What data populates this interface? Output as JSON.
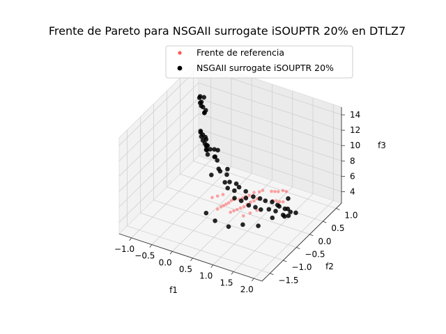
{
  "chart_data": {
    "type": "scatter",
    "projection": "3d",
    "title": "Frente de Pareto para NSGAII surrogate iSOUPTR 20% en DTLZ7",
    "xlabel": "f1",
    "ylabel": "f2",
    "zlabel": "f3",
    "xlim": [
      -1.3,
      2.2
    ],
    "ylim": [
      -1.8,
      1.2
    ],
    "zlim": [
      2.5,
      15.0
    ],
    "xticks": [
      "−1.0",
      "−0.5",
      "0.0",
      "0.5",
      "1.0",
      "1.5",
      "2.0"
    ],
    "yticks": [
      "−1.5",
      "−1.0",
      "−0.5",
      "0.0",
      "0.5",
      "1.0"
    ],
    "zticks": [
      "4",
      "6",
      "8",
      "10",
      "12",
      "14"
    ],
    "grid": true,
    "legend_position": "top-right",
    "series": [
      {
        "name": "Frente de referencia",
        "color": "#ff5a5a",
        "marker": "small-dot",
        "points": [
          [
            0.55,
            -0.45,
            4.0
          ],
          [
            0.6,
            -0.4,
            4.1
          ],
          [
            0.65,
            -0.35,
            4.2
          ],
          [
            0.7,
            -0.3,
            4.3
          ],
          [
            0.75,
            -0.25,
            4.4
          ],
          [
            0.8,
            -0.2,
            4.6
          ],
          [
            0.85,
            -0.15,
            4.8
          ],
          [
            0.9,
            -0.1,
            4.9
          ],
          [
            0.95,
            -0.05,
            5.1
          ],
          [
            0.3,
            -0.55,
            4.3
          ],
          [
            0.35,
            -0.5,
            4.5
          ],
          [
            0.4,
            -0.48,
            4.7
          ],
          [
            0.45,
            -0.46,
            4.9
          ],
          [
            0.5,
            -0.44,
            5.1
          ],
          [
            0.55,
            -0.42,
            5.4
          ],
          [
            0.6,
            -0.4,
            5.6
          ],
          [
            0.7,
            -0.35,
            5.6
          ],
          [
            0.75,
            -0.3,
            5.7
          ],
          [
            0.8,
            -0.25,
            5.8
          ],
          [
            0.85,
            -0.2,
            5.9
          ],
          [
            0.9,
            -0.1,
            6.0
          ],
          [
            1.0,
            -0.05,
            6.1
          ],
          [
            1.05,
            0.0,
            6.2
          ],
          [
            1.2,
            0.1,
            6.0
          ],
          [
            1.25,
            0.15,
            5.9
          ],
          [
            1.3,
            0.2,
            5.8
          ],
          [
            1.35,
            0.3,
            5.7
          ],
          [
            1.4,
            0.35,
            5.5
          ],
          [
            1.3,
            0.0,
            5.3
          ],
          [
            1.35,
            0.05,
            5.2
          ],
          [
            1.4,
            0.1,
            5.0
          ],
          [
            1.45,
            0.15,
            4.9
          ],
          [
            0.9,
            -0.5,
            4.3
          ],
          [
            1.0,
            -0.4,
            4.5
          ],
          [
            1.1,
            -0.3,
            4.7
          ],
          [
            0.2,
            -0.6,
            5.8
          ],
          [
            0.3,
            -0.55,
            6.0
          ],
          [
            0.4,
            -0.5,
            6.2
          ]
        ]
      },
      {
        "name": "NSGAII surrogate iSOUPTR 20%",
        "color": "#000000",
        "marker": "dot",
        "points": [
          [
            -1.15,
            1.0,
            11.0
          ],
          [
            -1.12,
            0.98,
            11.3
          ],
          [
            -1.1,
            0.95,
            10.6
          ],
          [
            -1.05,
            0.92,
            10.9
          ],
          [
            -1.08,
            0.96,
            10.2
          ],
          [
            -1.0,
            0.9,
            10.4
          ],
          [
            -0.98,
            0.93,
            9.6
          ],
          [
            -1.02,
            0.97,
            11.4
          ],
          [
            -0.95,
            0.88,
            9.8
          ],
          [
            -0.93,
            0.9,
            10.1
          ],
          [
            -0.7,
            0.35,
            9.5
          ],
          [
            -0.68,
            0.32,
            9.8
          ],
          [
            -0.65,
            0.3,
            9.2
          ],
          [
            -0.6,
            0.28,
            9.6
          ],
          [
            -0.58,
            0.25,
            9.0
          ],
          [
            -0.55,
            0.3,
            9.3
          ],
          [
            -0.5,
            0.2,
            8.9
          ],
          [
            -0.48,
            0.22,
            9.4
          ],
          [
            -0.45,
            0.18,
            8.7
          ],
          [
            -0.42,
            0.15,
            9.0
          ],
          [
            -0.4,
            0.1,
            8.6
          ],
          [
            -0.38,
            0.12,
            9.1
          ],
          [
            -0.35,
            0.05,
            8.8
          ],
          [
            -0.3,
            0.0,
            8.5
          ],
          [
            -0.25,
            0.02,
            9.2
          ],
          [
            -0.2,
            0.1,
            9.0
          ],
          [
            -0.15,
            0.05,
            8.3
          ],
          [
            -0.1,
            -0.05,
            8.7
          ],
          [
            -0.05,
            0.0,
            9.5
          ],
          [
            0.0,
            -0.1,
            8.6
          ],
          [
            0.1,
            -0.2,
            8.0
          ],
          [
            0.2,
            -0.3,
            8.2
          ],
          [
            0.3,
            -0.2,
            7.6
          ],
          [
            0.35,
            -0.35,
            7.2
          ],
          [
            0.4,
            -0.25,
            7.0
          ],
          [
            0.45,
            -0.4,
            6.8
          ],
          [
            0.5,
            -0.15,
            6.6
          ],
          [
            0.55,
            -0.3,
            6.3
          ],
          [
            0.6,
            -0.2,
            6.5
          ],
          [
            0.65,
            -0.45,
            6.0
          ],
          [
            0.7,
            -0.1,
            5.8
          ],
          [
            0.75,
            -0.35,
            5.5
          ],
          [
            0.8,
            -0.25,
            5.6
          ],
          [
            0.85,
            -0.05,
            5.2
          ],
          [
            0.9,
            -0.3,
            5.0
          ],
          [
            0.95,
            0.05,
            4.8
          ],
          [
            1.0,
            -0.2,
            4.6
          ],
          [
            1.05,
            0.1,
            4.5
          ],
          [
            1.1,
            -0.15,
            4.3
          ],
          [
            1.15,
            0.2,
            4.2
          ],
          [
            1.2,
            0.0,
            4.0
          ],
          [
            1.25,
            0.25,
            3.8
          ],
          [
            1.3,
            0.1,
            3.6
          ],
          [
            1.35,
            -0.1,
            3.5
          ],
          [
            1.4,
            0.3,
            3.4
          ],
          [
            1.45,
            0.15,
            3.2
          ],
          [
            1.5,
            0.35,
            3.0
          ],
          [
            1.55,
            0.2,
            3.1
          ],
          [
            1.6,
            0.4,
            2.9
          ],
          [
            1.38,
            0.45,
            4.2
          ],
          [
            0.15,
            -0.75,
            4.2
          ],
          [
            0.4,
            -0.8,
            3.8
          ],
          [
            0.7,
            -0.75,
            3.4
          ],
          [
            0.95,
            -0.6,
            3.6
          ],
          [
            1.2,
            -0.4,
            3.2
          ],
          [
            1.42,
            0.05,
            4.6
          ],
          [
            1.48,
            0.28,
            3.6
          ],
          [
            1.52,
            0.1,
            3.3
          ],
          [
            0.05,
            -0.4,
            7.8
          ],
          [
            0.25,
            -0.1,
            7.9
          ]
        ]
      }
    ]
  }
}
